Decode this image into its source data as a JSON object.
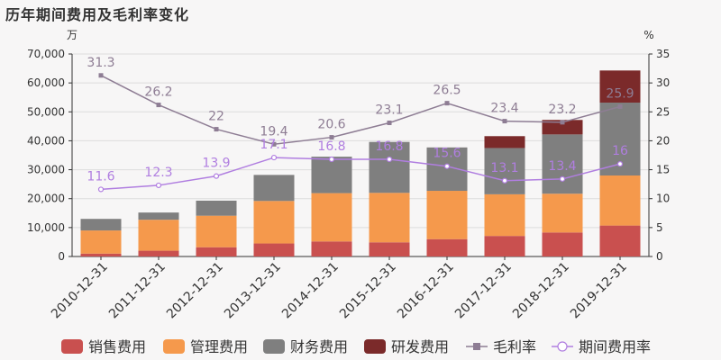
{
  "title": "历年期间费用及毛利率变化",
  "colors": {
    "sales": "#c9504f",
    "admin": "#f5994c",
    "finance": "#7f7f7f",
    "rd": "#7b2a2a",
    "gross": "#8e7d94",
    "period": "#b07ee0"
  },
  "chart_data": {
    "type": "bar",
    "stacked": true,
    "categories": [
      "2010-12-31",
      "2011-12-31",
      "2012-12-31",
      "2013-12-31",
      "2014-12-31",
      "2015-12-31",
      "2016-12-31",
      "2017-12-31",
      "2018-12-31",
      "2019-12-31"
    ],
    "yleft_label": "万",
    "yright_label": "%",
    "yleft_lim": [
      0,
      70000
    ],
    "yright_lim": [
      0,
      35
    ],
    "yleft_ticks": [
      0,
      10000,
      20000,
      30000,
      40000,
      50000,
      60000,
      70000
    ],
    "yleft_tick_labels": [
      "0",
      "10,000",
      "20,000",
      "30,000",
      "40,000",
      "50,000",
      "60,000",
      "70,000"
    ],
    "yright_ticks": [
      0,
      5,
      10,
      15,
      20,
      25,
      30,
      35
    ],
    "yright_tick_labels": [
      "0",
      "5",
      "10",
      "15",
      "20",
      "25",
      "30",
      "35"
    ],
    "grid": true,
    "legend_position": "bottom",
    "bar_series": [
      {
        "key": "sales",
        "name": "销售费用",
        "values": [
          1000,
          2000,
          3200,
          4500,
          5200,
          4900,
          6000,
          7100,
          8300,
          10700
        ]
      },
      {
        "key": "admin",
        "name": "管理费用",
        "values": [
          8000,
          10700,
          10900,
          14700,
          16700,
          17100,
          16700,
          14400,
          13400,
          17300
        ]
      },
      {
        "key": "finance",
        "name": "财务费用",
        "values": [
          4000,
          2500,
          5200,
          9000,
          12600,
          17600,
          15000,
          16000,
          20500,
          25200
        ]
      },
      {
        "key": "rd",
        "name": "研发费用",
        "values": [
          0,
          0,
          0,
          0,
          0,
          0,
          0,
          4100,
          5000,
          11100
        ]
      }
    ],
    "line_series": [
      {
        "key": "gross",
        "name": "毛利率",
        "marker": "square",
        "values": [
          31.3,
          26.2,
          22,
          19.4,
          20.6,
          23.1,
          26.5,
          23.4,
          23.2,
          25.9
        ],
        "labels": [
          "31.3",
          "26.2",
          "22",
          "19.4",
          "20.6",
          "23.1",
          "26.5",
          "23.4",
          "23.2",
          "25.9"
        ]
      },
      {
        "key": "period",
        "name": "期间费用率",
        "marker": "circle",
        "values": [
          11.6,
          12.3,
          13.9,
          17.1,
          16.8,
          16.8,
          15.6,
          13.1,
          13.4,
          16
        ],
        "labels": [
          "11.6",
          "12.3",
          "13.9",
          "17.1",
          "16.8",
          "16.8",
          "15.6",
          "13.1",
          "13.4",
          "16"
        ]
      }
    ]
  }
}
